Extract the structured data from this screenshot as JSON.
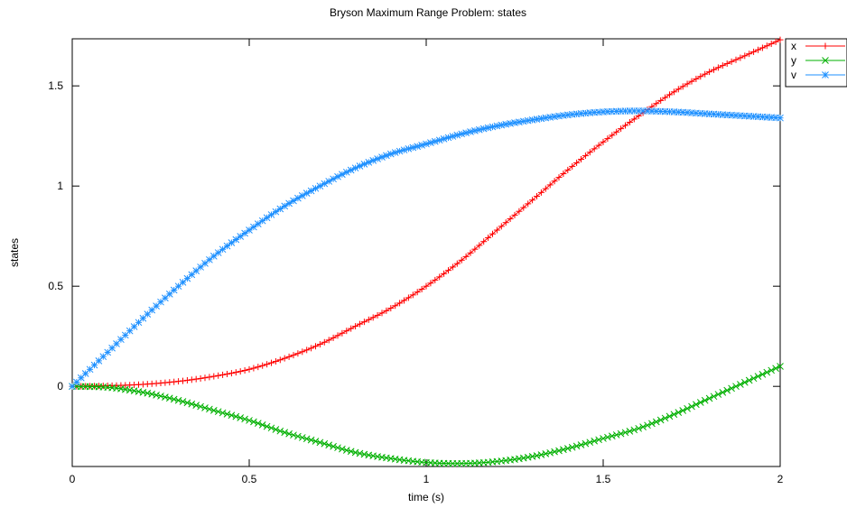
{
  "chart_data": {
    "type": "line",
    "title": "Bryson Maximum Range Problem: states",
    "xlabel": "time (s)",
    "ylabel": "states",
    "xlim": [
      0,
      2
    ],
    "ylim": [
      -0.4,
      1.735
    ],
    "xticks": [
      0,
      0.5,
      1,
      1.5,
      2
    ],
    "xtick_labels": [
      "0",
      "0.5",
      "1",
      "1.5",
      "2"
    ],
    "yticks": [
      0,
      0.5,
      1,
      1.5
    ],
    "ytick_labels": [
      "0",
      "0.5",
      "1",
      "1.5"
    ],
    "grid": false,
    "legend": "outside-top-right",
    "series": [
      {
        "name": "x",
        "color": "#ff0000",
        "marker": "plus",
        "x": [
          0,
          0.1,
          0.2,
          0.3,
          0.4,
          0.5,
          0.6,
          0.7,
          0.8,
          0.9,
          1.0,
          1.1,
          1.2,
          1.3,
          1.4,
          1.5,
          1.6,
          1.7,
          1.8,
          1.9,
          2.0
        ],
        "y": [
          0,
          0.003,
          0.01,
          0.025,
          0.05,
          0.085,
          0.14,
          0.21,
          0.3,
          0.39,
          0.5,
          0.63,
          0.78,
          0.93,
          1.08,
          1.22,
          1.35,
          1.47,
          1.57,
          1.65,
          1.73
        ]
      },
      {
        "name": "y",
        "color": "#00b000",
        "marker": "cross",
        "x": [
          0,
          0.1,
          0.2,
          0.3,
          0.4,
          0.5,
          0.6,
          0.7,
          0.8,
          0.9,
          1.0,
          1.1,
          1.2,
          1.3,
          1.4,
          1.5,
          1.6,
          1.7,
          1.8,
          1.9,
          2.0
        ],
        "y": [
          0,
          -0.005,
          -0.03,
          -0.07,
          -0.12,
          -0.17,
          -0.23,
          -0.28,
          -0.33,
          -0.36,
          -0.38,
          -0.385,
          -0.375,
          -0.35,
          -0.31,
          -0.26,
          -0.21,
          -0.14,
          -0.06,
          0.02,
          0.1
        ]
      },
      {
        "name": "v",
        "color": "#1e90ff",
        "marker": "asterisk",
        "x": [
          0,
          0.1,
          0.2,
          0.3,
          0.4,
          0.5,
          0.6,
          0.7,
          0.8,
          0.9,
          1.0,
          1.1,
          1.2,
          1.3,
          1.4,
          1.5,
          1.6,
          1.7,
          1.8,
          1.9,
          2.0
        ],
        "y": [
          0,
          0.17,
          0.34,
          0.5,
          0.65,
          0.78,
          0.9,
          1.0,
          1.09,
          1.16,
          1.21,
          1.26,
          1.3,
          1.33,
          1.355,
          1.37,
          1.375,
          1.37,
          1.36,
          1.35,
          1.34
        ]
      }
    ]
  }
}
